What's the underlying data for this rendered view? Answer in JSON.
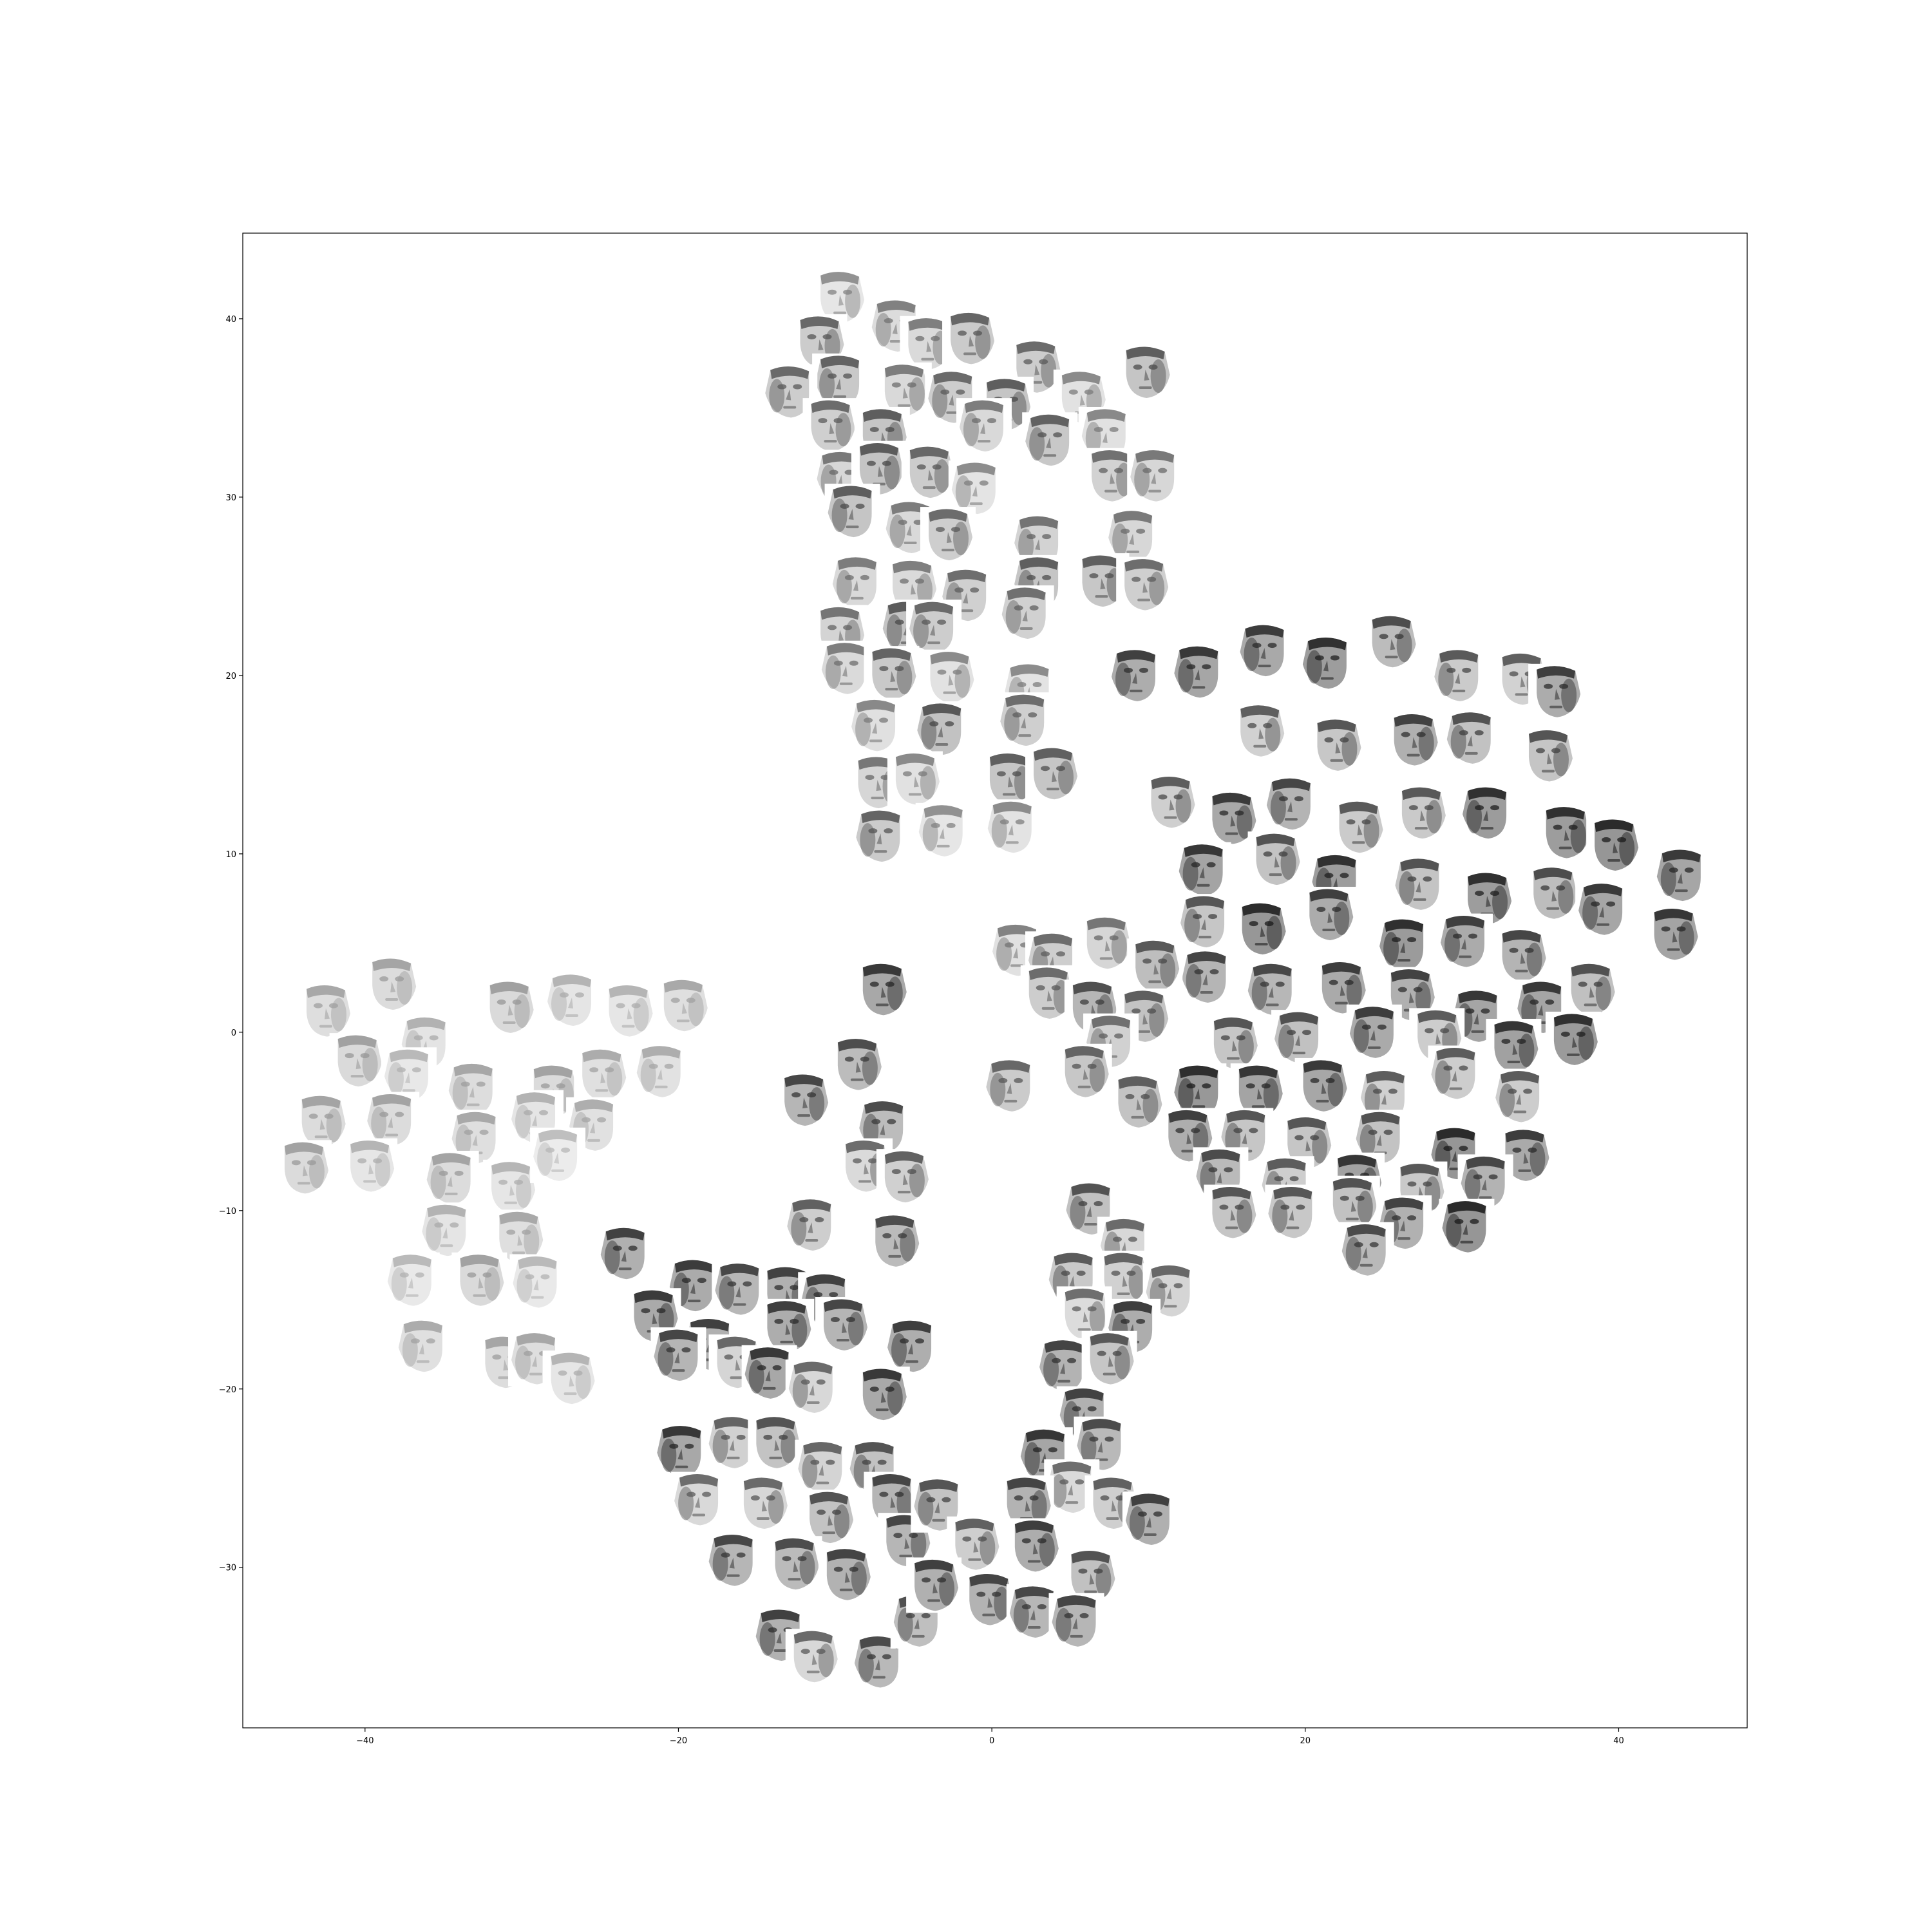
{
  "chart_data": {
    "type": "scatter",
    "title": "",
    "xlabel": "",
    "ylabel": "",
    "xlim": [
      -47.8,
      48.2
    ],
    "ylim": [
      -39.0,
      44.8
    ],
    "x_ticks": [
      -40,
      -20,
      0,
      20,
      40
    ],
    "y_ticks": [
      -30,
      -20,
      -10,
      0,
      10,
      20,
      30,
      40
    ],
    "x_tick_labels": [
      "−40",
      "−20",
      "0",
      "20",
      "40"
    ],
    "y_tick_labels": [
      "−30",
      "−20",
      "−10",
      "0",
      "10",
      "20",
      "30",
      "40"
    ],
    "grid": false,
    "legend": "none",
    "marker": "grayscale face-image thumbnail",
    "colors": {
      "axes": "#000000",
      "background": "#ffffff",
      "face_light": "#dcdcdc",
      "face_dark": "#3a3a3a"
    },
    "clusters": [
      {
        "shade": "light-to-dark",
        "points": [
          [
            -9.7,
            41.2
          ],
          [
            -6.1,
            39.6
          ],
          [
            -11.0,
            38.7
          ],
          [
            -4.1,
            38.6
          ],
          [
            -1.4,
            38.9
          ],
          [
            2.8,
            37.3
          ],
          [
            -9.7,
            36.5
          ],
          [
            -5.6,
            36.0
          ],
          [
            -12.9,
            35.9
          ],
          [
            -2.5,
            35.6
          ],
          [
            0.9,
            35.2
          ],
          [
            5.7,
            35.6
          ],
          [
            9.8,
            37.0
          ],
          [
            -10.3,
            34.0
          ],
          [
            -7.0,
            33.5
          ],
          [
            -0.5,
            34.0
          ],
          [
            3.7,
            33.2
          ],
          [
            7.3,
            33.5
          ],
          [
            -9.6,
            31.1
          ],
          [
            -7.2,
            31.6
          ],
          [
            -4.0,
            31.4
          ],
          [
            -1.0,
            30.5
          ],
          [
            7.6,
            31.2
          ],
          [
            10.4,
            31.2
          ],
          [
            -8.9,
            29.2
          ],
          [
            -5.2,
            28.3
          ],
          [
            -2.8,
            27.9
          ],
          [
            3.0,
            27.5
          ],
          [
            9.0,
            27.8
          ],
          [
            -8.6,
            25.2
          ],
          [
            -5.1,
            25.0
          ],
          [
            -1.6,
            24.5
          ],
          [
            3.0,
            25.2
          ],
          [
            7.0,
            25.3
          ],
          [
            9.7,
            25.1
          ],
          [
            -9.7,
            22.4
          ],
          [
            -5.4,
            22.7
          ],
          [
            -3.7,
            22.7
          ],
          [
            2.2,
            23.5
          ],
          [
            -9.3,
            20.4
          ],
          [
            -6.4,
            20.1
          ],
          [
            -2.7,
            19.9
          ],
          [
            2.4,
            19.2
          ],
          [
            -7.4,
            17.2
          ],
          [
            -3.2,
            17.0
          ],
          [
            2.1,
            17.5
          ],
          [
            -7.3,
            14.0
          ],
          [
            -4.9,
            14.2
          ],
          [
            1.1,
            14.2
          ],
          [
            3.9,
            14.5
          ],
          [
            -7.1,
            11.0
          ],
          [
            -3.1,
            11.3
          ],
          [
            1.3,
            11.5
          ]
        ]
      },
      {
        "shade": "dark",
        "points": [
          [
            9.2,
            20.0
          ],
          [
            13.2,
            20.2
          ],
          [
            17.4,
            21.4
          ],
          [
            21.4,
            20.7
          ],
          [
            25.5,
            21.9
          ],
          [
            29.8,
            20.0
          ],
          [
            33.8,
            19.8
          ],
          [
            36.0,
            19.1
          ],
          [
            17.1,
            16.9
          ],
          [
            22.0,
            16.1
          ],
          [
            26.9,
            16.4
          ],
          [
            30.6,
            16.5
          ],
          [
            35.5,
            15.5
          ],
          [
            11.4,
            12.9
          ],
          [
            15.3,
            12.0
          ],
          [
            19.1,
            12.8
          ],
          [
            23.4,
            11.5
          ],
          [
            27.4,
            12.3
          ],
          [
            31.6,
            12.3
          ],
          [
            36.6,
            11.2
          ],
          [
            39.7,
            10.5
          ],
          [
            13.5,
            9.1
          ],
          [
            18.1,
            9.7
          ],
          [
            22.0,
            8.5
          ],
          [
            27.3,
            8.3
          ],
          [
            31.6,
            7.5
          ],
          [
            35.8,
            7.8
          ],
          [
            39.0,
            6.9
          ],
          [
            44.0,
            8.8
          ],
          [
            13.6,
            6.2
          ],
          [
            17.2,
            5.8
          ],
          [
            21.5,
            6.6
          ],
          [
            26.3,
            4.9
          ],
          [
            30.2,
            5.1
          ],
          [
            33.8,
            4.3
          ],
          [
            43.5,
            5.5
          ],
          [
            13.7,
            3.1
          ],
          [
            17.9,
            2.4
          ],
          [
            22.3,
            2.5
          ],
          [
            26.7,
            2.1
          ],
          [
            31.0,
            0.9
          ],
          [
            35.1,
            1.4
          ],
          [
            38.2,
            2.4
          ],
          [
            15.4,
            -0.6
          ],
          [
            19.6,
            -0.3
          ],
          [
            24.4,
            0.0
          ],
          [
            28.4,
            -0.2
          ],
          [
            33.3,
            -0.8
          ],
          [
            37.1,
            -0.4
          ],
          [
            13.2,
            -3.3
          ],
          [
            17.0,
            -3.3
          ],
          [
            21.1,
            -3.0
          ],
          [
            25.1,
            -3.6
          ],
          [
            29.6,
            -2.3
          ],
          [
            33.7,
            -3.6
          ],
          [
            12.5,
            -5.8
          ],
          [
            16.2,
            -5.8
          ],
          [
            20.1,
            -6.2
          ],
          [
            24.8,
            -5.9
          ],
          [
            29.6,
            -6.8
          ],
          [
            34.0,
            -6.9
          ],
          [
            14.6,
            -8.0
          ],
          [
            18.8,
            -8.5
          ],
          [
            23.3,
            -8.3
          ],
          [
            27.3,
            -8.8
          ],
          [
            31.5,
            -8.4
          ],
          [
            15.3,
            -10.1
          ],
          [
            19.2,
            -10.1
          ],
          [
            23.0,
            -9.6
          ],
          [
            26.3,
            -10.7
          ],
          [
            30.3,
            -10.9
          ],
          [
            23.9,
            -12.2
          ]
        ]
      },
      {
        "shade": "medium",
        "points": [
          [
            1.6,
            4.6
          ],
          [
            3.9,
            4.1
          ],
          [
            7.3,
            5.0
          ],
          [
            10.4,
            3.7
          ],
          [
            3.6,
            2.2
          ],
          [
            6.4,
            1.4
          ],
          [
            9.7,
            0.9
          ],
          [
            7.6,
            -0.5
          ],
          [
            1.2,
            -3.0
          ],
          [
            5.9,
            -2.2
          ],
          [
            9.3,
            -3.9
          ]
        ]
      },
      {
        "shade": "light",
        "points": [
          [
            -42.5,
            1.2
          ],
          [
            -38.3,
            2.7
          ],
          [
            -36.1,
            -0.6
          ],
          [
            -30.8,
            1.4
          ],
          [
            -26.8,
            1.8
          ],
          [
            -23.2,
            1.2
          ],
          [
            -19.7,
            1.5
          ],
          [
            -40.5,
            -1.6
          ],
          [
            -37.2,
            -2.4
          ],
          [
            -33.1,
            -3.2
          ],
          [
            -28.0,
            -3.3
          ],
          [
            -24.9,
            -2.4
          ],
          [
            -21.1,
            -2.2
          ],
          [
            -42.8,
            -5.0
          ],
          [
            -38.3,
            -4.9
          ],
          [
            -32.9,
            -5.9
          ],
          [
            -29.1,
            -4.8
          ],
          [
            -25.4,
            -5.2
          ],
          [
            -43.9,
            -7.6
          ],
          [
            -39.7,
            -7.5
          ],
          [
            -34.5,
            -8.2
          ],
          [
            -30.7,
            -8.7
          ],
          [
            -27.7,
            -6.9
          ],
          [
            -34.8,
            -11.1
          ],
          [
            -30.2,
            -11.5
          ],
          [
            -37.0,
            -13.9
          ],
          [
            -32.7,
            -13.9
          ],
          [
            -29.0,
            -14.0
          ],
          [
            -36.3,
            -17.6
          ],
          [
            -31.1,
            -18.5
          ],
          [
            -29.1,
            -18.3
          ],
          [
            -26.9,
            -19.4
          ]
        ]
      },
      {
        "shade": "medium-to-dark",
        "points": [
          [
            -7.0,
            2.4
          ],
          [
            -8.6,
            -1.8
          ],
          [
            -12.0,
            -3.8
          ],
          [
            -6.9,
            -5.3
          ],
          [
            -8.1,
            -7.5
          ],
          [
            -5.6,
            -8.1
          ],
          [
            -11.5,
            -10.8
          ],
          [
            -6.2,
            -11.7
          ],
          [
            -23.4,
            -12.4
          ],
          [
            -19.0,
            -14.2
          ],
          [
            -16.1,
            -14.4
          ],
          [
            -13.1,
            -14.6
          ],
          [
            -10.6,
            -15.0
          ],
          [
            -21.6,
            -15.9
          ],
          [
            -18.0,
            -17.5
          ],
          [
            -13.1,
            -16.5
          ],
          [
            -9.5,
            -16.4
          ],
          [
            -5.1,
            -17.6
          ],
          [
            -20.0,
            -18.1
          ],
          [
            -16.3,
            -18.5
          ],
          [
            -14.2,
            -19.1
          ],
          [
            -11.4,
            -19.9
          ],
          [
            -7.0,
            -20.3
          ],
          [
            -19.8,
            -23.5
          ],
          [
            -16.5,
            -23.0
          ],
          [
            -13.8,
            -23.0
          ],
          [
            -10.8,
            -24.4
          ],
          [
            -7.5,
            -24.4
          ],
          [
            -18.7,
            -26.2
          ],
          [
            -14.6,
            -26.4
          ],
          [
            -10.4,
            -27.2
          ],
          [
            -6.4,
            -26.2
          ],
          [
            -16.5,
            -29.6
          ],
          [
            -12.6,
            -29.8
          ],
          [
            -9.3,
            -30.4
          ],
          [
            -5.5,
            -28.5
          ],
          [
            -13.5,
            -33.8
          ],
          [
            -11.4,
            -35.0
          ],
          [
            -7.2,
            -35.3
          ],
          [
            -4.7,
            -33.0
          ],
          [
            6.3,
            -9.9
          ],
          [
            8.5,
            -11.9
          ],
          [
            5.2,
            -13.8
          ],
          [
            8.4,
            -13.8
          ],
          [
            11.4,
            -14.5
          ],
          [
            5.9,
            -15.8
          ],
          [
            9.0,
            -16.5
          ],
          [
            4.6,
            -18.7
          ],
          [
            7.5,
            -18.3
          ],
          [
            5.9,
            -21.4
          ],
          [
            3.4,
            -23.7
          ],
          [
            7.0,
            -23.1
          ],
          [
            5.1,
            -25.5
          ],
          [
            2.2,
            -26.4
          ],
          [
            7.7,
            -26.4
          ],
          [
            10.1,
            -27.3
          ],
          [
            -3.4,
            -26.5
          ],
          [
            -1.1,
            -28.7
          ],
          [
            2.7,
            -28.8
          ],
          [
            6.3,
            -30.5
          ],
          [
            -3.7,
            -31.0
          ],
          [
            -0.2,
            -31.8
          ],
          [
            2.7,
            -32.5
          ],
          [
            5.4,
            -33.0
          ]
        ]
      }
    ]
  }
}
